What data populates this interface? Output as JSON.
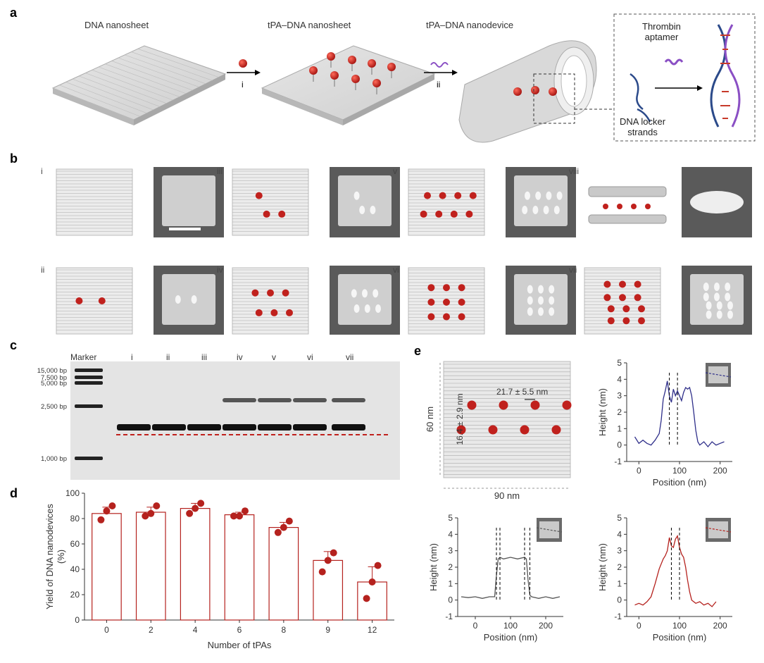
{
  "panel_labels": {
    "a": "a",
    "b": "b",
    "c": "c",
    "d": "d",
    "e": "e"
  },
  "panel_a": {
    "title_1": "DNA nanosheet",
    "title_2": "tPA–DNA nanosheet",
    "title_3": "tPA–DNA nanodevice",
    "step_1": "i",
    "step_2": "ii",
    "inset_aptamer_line1": "Thrombin",
    "inset_aptamer_line2": "aptamer",
    "inset_locker_line1": "DNA locker",
    "inset_locker_line2": "strands"
  },
  "panel_b": {
    "labels": [
      "i",
      "ii",
      "iii",
      "iv",
      "v",
      "vi",
      "vii",
      "viii"
    ],
    "colors": {
      "tpa": "#c0211d",
      "sheet": "#c9c9c9",
      "afm_bg": "#5a5a5a"
    }
  },
  "panel_c": {
    "marker_label": "Marker",
    "lanes": [
      "i",
      "ii",
      "iii",
      "iv",
      "v",
      "vi",
      "vii"
    ],
    "ladder": [
      "15,000 bp",
      "7,500 bp",
      "5,000 bp",
      "2,500 bp",
      "1,000 bp"
    ]
  },
  "panel_e": {
    "dim_height": "60 nm",
    "dim_width": "90 nm",
    "spacing_h": "21.7 ± 5.5 nm",
    "spacing_v": "16.4 ± 2.9 nm"
  },
  "chart_data": [
    {
      "type": "bar",
      "title": "",
      "xlabel": "Number of tPAs",
      "ylabel": "Yield of DNA nanodevices (%)",
      "categories": [
        "0",
        "2",
        "4",
        "6",
        "8",
        "9",
        "12"
      ],
      "values": [
        84,
        85,
        88,
        83,
        73,
        47,
        30
      ],
      "error": [
        5,
        4,
        4,
        2,
        4,
        7,
        12
      ],
      "points": [
        [
          79,
          86,
          90
        ],
        [
          82,
          84,
          90
        ],
        [
          84,
          88,
          92
        ],
        [
          82,
          82,
          86
        ],
        [
          69,
          73,
          78
        ],
        [
          38,
          47,
          53
        ],
        [
          17,
          30,
          43
        ]
      ],
      "ylim": [
        0,
        100
      ],
      "yticks": [
        0,
        20,
        40,
        60,
        80,
        100
      ],
      "color": "#b5221e"
    },
    {
      "type": "line",
      "title": "",
      "xlabel": "Position (nm)",
      "ylabel": "Height (nm)",
      "xlim": [
        -30,
        230
      ],
      "ylim": [
        -1,
        5
      ],
      "xticks": [
        0,
        100,
        200
      ],
      "yticks": [
        -1,
        0,
        1,
        2,
        3,
        4,
        5
      ],
      "color": "#2f2f8a",
      "x": [
        -10,
        0,
        10,
        20,
        30,
        40,
        50,
        55,
        60,
        65,
        70,
        75,
        80,
        85,
        90,
        95,
        100,
        105,
        110,
        115,
        120,
        125,
        130,
        135,
        140,
        145,
        150,
        160,
        170,
        180,
        190,
        200,
        210
      ],
      "y": [
        0.5,
        0.1,
        0.3,
        0.1,
        0.0,
        0.3,
        0.7,
        1.5,
        2.8,
        3.3,
        3.9,
        3.0,
        2.6,
        3.4,
        3.0,
        3.3,
        3.0,
        2.7,
        3.2,
        3.5,
        3.4,
        3.5,
        3.0,
        2.0,
        0.9,
        0.2,
        0.0,
        0.2,
        -0.1,
        0.2,
        0.0,
        0.1,
        0.2
      ],
      "markers": [
        75,
        95
      ]
    },
    {
      "type": "line",
      "title": "",
      "xlabel": "Position (nm)",
      "ylabel": "Height (nm)",
      "xlim": [
        -50,
        250
      ],
      "ylim": [
        -1,
        5
      ],
      "xticks": [
        0,
        100,
        200
      ],
      "yticks": [
        -1,
        0,
        1,
        2,
        3,
        4,
        5
      ],
      "color": "#555555",
      "x": [
        -40,
        -20,
        0,
        20,
        40,
        55,
        60,
        65,
        70,
        80,
        100,
        120,
        140,
        145,
        150,
        155,
        160,
        180,
        200,
        220,
        240
      ],
      "y": [
        0.2,
        0.15,
        0.2,
        0.1,
        0.2,
        0.2,
        1.5,
        2.5,
        2.6,
        2.5,
        2.6,
        2.5,
        2.6,
        2.5,
        1.2,
        0.3,
        0.2,
        0.1,
        0.2,
        0.1,
        0.2
      ],
      "markers": [
        60,
        70,
        140,
        155
      ]
    },
    {
      "type": "line",
      "title": "",
      "xlabel": "Position (nm)",
      "ylabel": "Height (nm)",
      "xlim": [
        -30,
        230
      ],
      "ylim": [
        -1,
        5
      ],
      "xticks": [
        0,
        100,
        200
      ],
      "yticks": [
        -1,
        0,
        1,
        2,
        3,
        4,
        5
      ],
      "color": "#b5221e",
      "x": [
        -10,
        0,
        10,
        20,
        30,
        40,
        50,
        60,
        65,
        70,
        75,
        80,
        85,
        90,
        95,
        100,
        105,
        110,
        115,
        120,
        125,
        130,
        140,
        150,
        160,
        170,
        180,
        190
      ],
      "y": [
        -0.3,
        -0.2,
        -0.3,
        -0.1,
        0.2,
        1.0,
        1.9,
        2.5,
        2.7,
        3.0,
        3.8,
        3.3,
        3.2,
        3.7,
        3.9,
        3.2,
        2.8,
        2.6,
        2.0,
        1.2,
        0.5,
        0.0,
        -0.2,
        -0.1,
        -0.3,
        -0.2,
        -0.4,
        -0.1
      ],
      "markers": [
        80,
        100
      ]
    }
  ]
}
